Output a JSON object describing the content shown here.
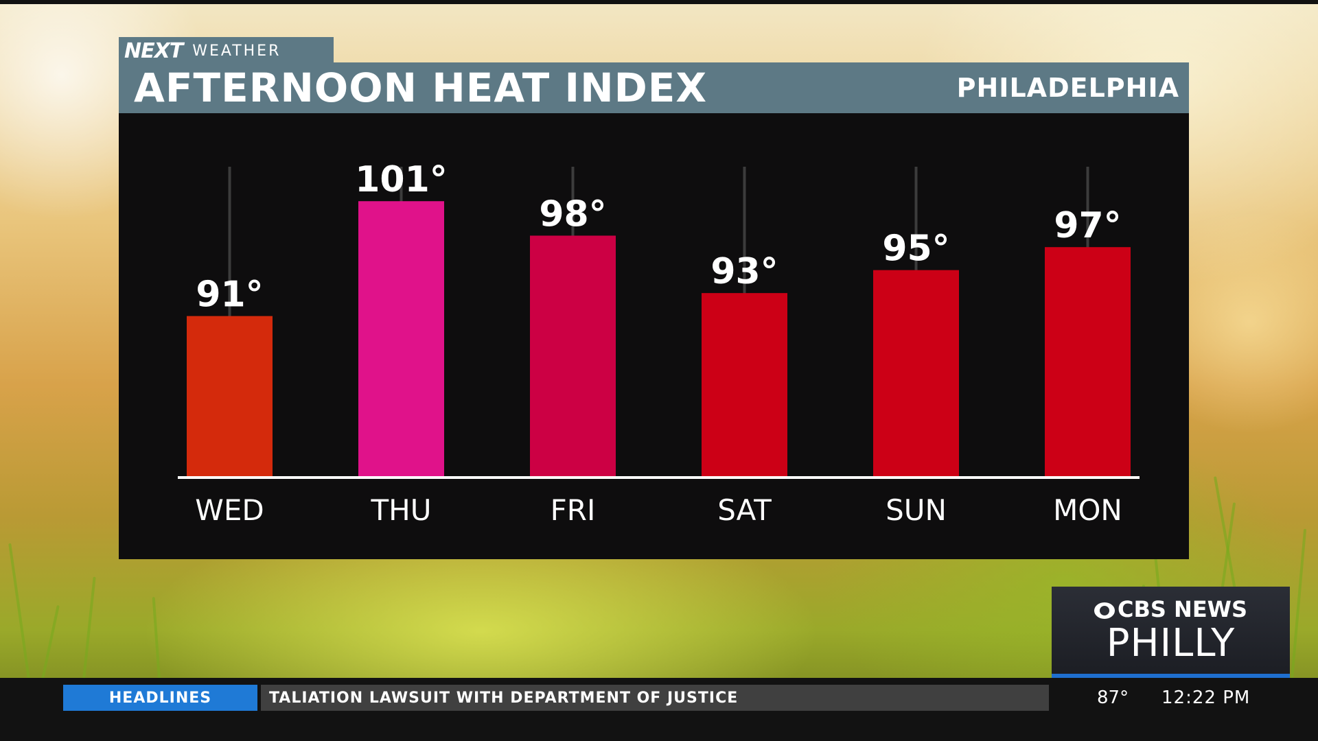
{
  "branding": {
    "logo_text": "NEXT",
    "logo_subtext": "WEATHER",
    "network": "CBS NEWS",
    "station": "PHILLY"
  },
  "title_bar": {
    "title": "AFTERNOON HEAT INDEX",
    "location": "PHILADELPHIA"
  },
  "chart_data": {
    "type": "bar",
    "title": "AFTERNOON HEAT INDEX",
    "subtitle": "PHILADELPHIA",
    "categories": [
      "WED",
      "THU",
      "FRI",
      "SAT",
      "SUN",
      "MON"
    ],
    "values": [
      91,
      101,
      98,
      93,
      95,
      97
    ],
    "value_labels": [
      "91°",
      "101°",
      "98°",
      "93°",
      "95°",
      "97°"
    ],
    "bar_colors": [
      "#d42a0c",
      "#e0128a",
      "#cc0044",
      "#cc0016",
      "#cc0016",
      "#cc0016"
    ],
    "xlabel": "",
    "ylabel": "",
    "ylim": [
      77,
      104
    ],
    "grid": false,
    "legend": "none"
  },
  "ticker": {
    "section_label": "HEADLINES",
    "headline": "TALIATION LAWSUIT WITH DEPARTMENT OF JUSTICE",
    "temperature": "87°",
    "time": "12:22 PM"
  },
  "colors": {
    "title_bar": "#5d7985",
    "chart_background": "#0e0d0e",
    "ticker_accent": "#1f7ad6"
  }
}
